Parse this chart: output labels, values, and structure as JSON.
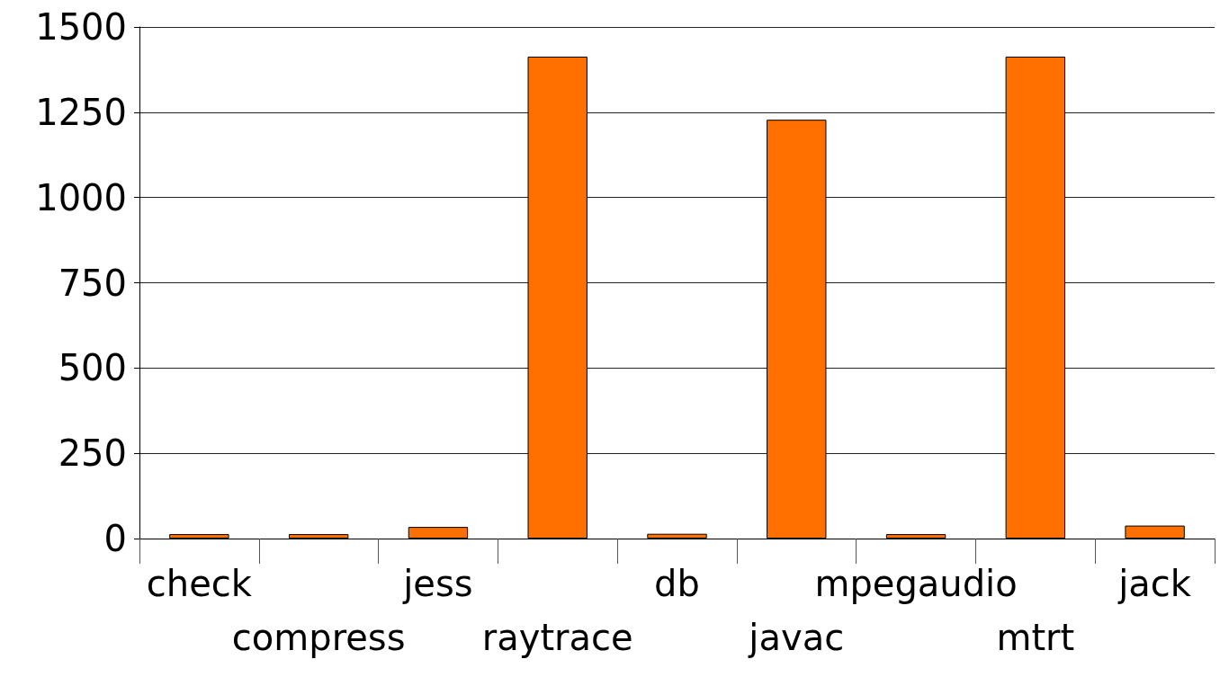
{
  "chart_data": {
    "type": "bar",
    "categories": [
      "check",
      "compress",
      "jess",
      "raytrace",
      "db",
      "javac",
      "mpegaudio",
      "mtrt",
      "jack"
    ],
    "values": [
      13,
      13,
      34,
      1413,
      14,
      1228,
      13,
      1413,
      38
    ],
    "color": "#ff7000",
    "ylim": [
      0,
      1500
    ],
    "yticks": [
      0,
      250,
      500,
      750,
      1000,
      1250,
      1500
    ],
    "grid": "y"
  }
}
